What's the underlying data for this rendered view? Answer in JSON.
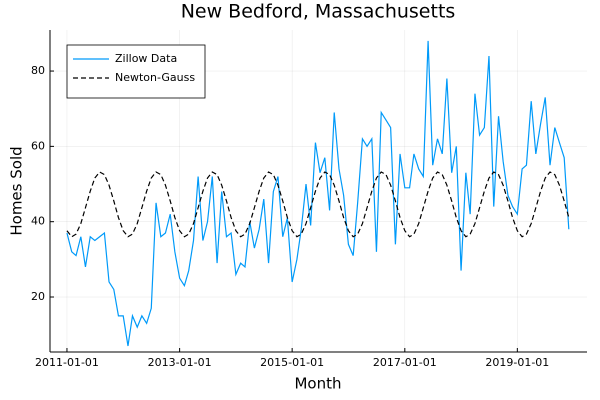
{
  "chart_data": {
    "type": "line",
    "title": "New Bedford, Massachusetts",
    "x_label": "Month",
    "y_label": "Homes Sold",
    "x": [
      "2011-01-01",
      "2011-02-01",
      "2011-03-01",
      "2011-04-01",
      "2011-05-01",
      "2011-06-01",
      "2011-07-01",
      "2011-08-01",
      "2011-09-01",
      "2011-10-01",
      "2011-11-01",
      "2011-12-01",
      "2012-01-01",
      "2012-02-01",
      "2012-03-01",
      "2012-04-01",
      "2012-05-01",
      "2012-06-01",
      "2012-07-01",
      "2012-08-01",
      "2012-09-01",
      "2012-10-01",
      "2012-11-01",
      "2012-12-01",
      "2013-01-01",
      "2013-02-01",
      "2013-03-01",
      "2013-04-01",
      "2013-05-01",
      "2013-06-01",
      "2013-07-01",
      "2013-08-01",
      "2013-09-01",
      "2013-10-01",
      "2013-11-01",
      "2013-12-01",
      "2014-01-01",
      "2014-02-01",
      "2014-03-01",
      "2014-04-01",
      "2014-05-01",
      "2014-06-01",
      "2014-07-01",
      "2014-08-01",
      "2014-09-01",
      "2014-10-01",
      "2014-11-01",
      "2014-12-01",
      "2015-01-01",
      "2015-02-01",
      "2015-03-01",
      "2015-04-01",
      "2015-05-01",
      "2015-06-01",
      "2015-07-01",
      "2015-08-01",
      "2015-09-01",
      "2015-10-01",
      "2015-11-01",
      "2015-12-01",
      "2016-01-01",
      "2016-02-01",
      "2016-03-01",
      "2016-04-01",
      "2016-05-01",
      "2016-06-01",
      "2016-07-01",
      "2016-08-01",
      "2016-09-01",
      "2016-10-01",
      "2016-11-01",
      "2016-12-01",
      "2017-01-01",
      "2017-02-01",
      "2017-03-01",
      "2017-04-01",
      "2017-05-01",
      "2017-06-01",
      "2017-07-01",
      "2017-08-01",
      "2017-09-01",
      "2017-10-01",
      "2017-11-01",
      "2017-12-01",
      "2018-01-01",
      "2018-02-01",
      "2018-03-01",
      "2018-04-01",
      "2018-05-01",
      "2018-06-01",
      "2018-07-01",
      "2018-08-01",
      "2018-09-01",
      "2018-10-01",
      "2018-11-01",
      "2018-12-01",
      "2019-01-01",
      "2019-02-01",
      "2019-03-01",
      "2019-04-01",
      "2019-05-01",
      "2019-06-01",
      "2019-07-01",
      "2019-08-01",
      "2019-09-01",
      "2019-10-01",
      "2019-11-01",
      "2019-12-01"
    ],
    "series": [
      {
        "name": "Zillow Data",
        "color": "#009af9",
        "dashed": false,
        "values": [
          37,
          32,
          31,
          36,
          28,
          36,
          35,
          36,
          37,
          24,
          22,
          15,
          15,
          7,
          15,
          12,
          15,
          13,
          17,
          45,
          36,
          37,
          42,
          32,
          25,
          23,
          27,
          35,
          52,
          35,
          40,
          52,
          29,
          48,
          36,
          37,
          26,
          29,
          28,
          40,
          33,
          38,
          46,
          29,
          48,
          52,
          36,
          41,
          24,
          30,
          38,
          50,
          39,
          61,
          53,
          57,
          43,
          69,
          54,
          47,
          34,
          31,
          45,
          62,
          60,
          62,
          32,
          69,
          67,
          65,
          34,
          58,
          49,
          49,
          58,
          54,
          52,
          88,
          55,
          62,
          58,
          78,
          53,
          60,
          27,
          53,
          42,
          74,
          63,
          65,
          84,
          44,
          68,
          56,
          47,
          44,
          42,
          54,
          55,
          72,
          58,
          66,
          73,
          55,
          65,
          61,
          57,
          38
        ]
      },
      {
        "name": "Newton-Gauss",
        "color": "#000000",
        "dashed": true,
        "values": [
          37.6,
          36.0,
          36.7,
          39.5,
          43.7,
          48.1,
          51.6,
          53.2,
          52.5,
          49.7,
          45.5,
          41.1,
          37.6,
          36.0,
          36.7,
          39.5,
          43.7,
          48.1,
          51.6,
          53.2,
          52.5,
          49.7,
          45.5,
          41.1,
          37.6,
          36.0,
          36.7,
          39.5,
          43.7,
          48.1,
          51.6,
          53.2,
          52.5,
          49.7,
          45.5,
          41.1,
          37.6,
          36.0,
          36.7,
          39.5,
          43.7,
          48.1,
          51.6,
          53.2,
          52.5,
          49.7,
          45.5,
          41.1,
          37.6,
          36.0,
          36.7,
          39.5,
          43.7,
          48.1,
          51.6,
          53.2,
          52.5,
          49.7,
          45.5,
          41.1,
          37.6,
          36.0,
          36.7,
          39.5,
          43.7,
          48.1,
          51.6,
          53.2,
          52.5,
          49.7,
          45.5,
          41.1,
          37.6,
          36.0,
          36.7,
          39.5,
          43.7,
          48.1,
          51.6,
          53.2,
          52.5,
          49.7,
          45.5,
          41.1,
          37.6,
          36.0,
          36.7,
          39.5,
          43.7,
          48.1,
          51.6,
          53.2,
          52.5,
          49.7,
          45.5,
          41.1,
          37.6,
          36.0,
          36.7,
          39.5,
          43.7,
          48.1,
          51.6,
          53.2,
          52.5,
          49.7,
          45.5,
          41.1
        ]
      }
    ],
    "xlim": [
      "2010-09-13",
      "2020-03-28"
    ],
    "xticks": [
      "2011-01-01",
      "2013-01-01",
      "2015-01-01",
      "2017-01-01",
      "2019-01-01"
    ],
    "ylim": [
      5.4,
      90.9
    ],
    "yticks": [
      20,
      40,
      60,
      80
    ],
    "grid": true,
    "legend": "top-left"
  }
}
